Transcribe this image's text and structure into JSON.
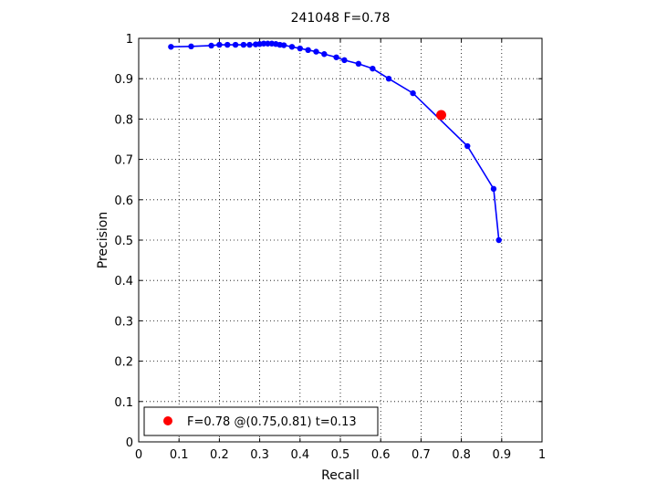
{
  "chart_data": {
    "type": "line",
    "title": "241048 F=0.78",
    "xlabel": "Recall",
    "ylabel": "Precision",
    "xlim": [
      0,
      1
    ],
    "ylim": [
      0,
      1
    ],
    "grid": true,
    "legend_position": "bottom-left",
    "x_ticks": [
      "0",
      "0.1",
      "0.2",
      "0.3",
      "0.4",
      "0.5",
      "0.6",
      "0.7",
      "0.8",
      "0.9",
      "1"
    ],
    "y_ticks": [
      "0",
      "0.1",
      "0.2",
      "0.3",
      "0.4",
      "0.5",
      "0.6",
      "0.7",
      "0.8",
      "0.9",
      "1"
    ],
    "series": [
      {
        "color": "#0000ff",
        "points": [
          [
            0.08,
            0.979
          ],
          [
            0.13,
            0.98
          ],
          [
            0.18,
            0.982
          ],
          [
            0.2,
            0.984
          ],
          [
            0.22,
            0.984
          ],
          [
            0.24,
            0.984
          ],
          [
            0.26,
            0.984
          ],
          [
            0.275,
            0.984
          ],
          [
            0.29,
            0.985
          ],
          [
            0.3,
            0.986
          ],
          [
            0.31,
            0.987
          ],
          [
            0.32,
            0.987
          ],
          [
            0.33,
            0.987
          ],
          [
            0.34,
            0.986
          ],
          [
            0.35,
            0.984
          ],
          [
            0.36,
            0.983
          ],
          [
            0.38,
            0.979
          ],
          [
            0.4,
            0.975
          ],
          [
            0.42,
            0.971
          ],
          [
            0.44,
            0.967
          ],
          [
            0.46,
            0.961
          ],
          [
            0.49,
            0.953
          ],
          [
            0.51,
            0.946
          ],
          [
            0.545,
            0.937
          ],
          [
            0.58,
            0.925
          ],
          [
            0.62,
            0.9
          ],
          [
            0.68,
            0.864
          ],
          [
            0.815,
            0.733
          ],
          [
            0.88,
            0.627
          ],
          [
            0.893,
            0.5
          ]
        ]
      }
    ],
    "highlight": {
      "recall": 0.75,
      "precision": 0.81,
      "color": "#ff0000"
    },
    "legend": {
      "label": "F=0.78 @(0.75,0.81) t=0.13",
      "marker_color": "#ff0000"
    }
  }
}
